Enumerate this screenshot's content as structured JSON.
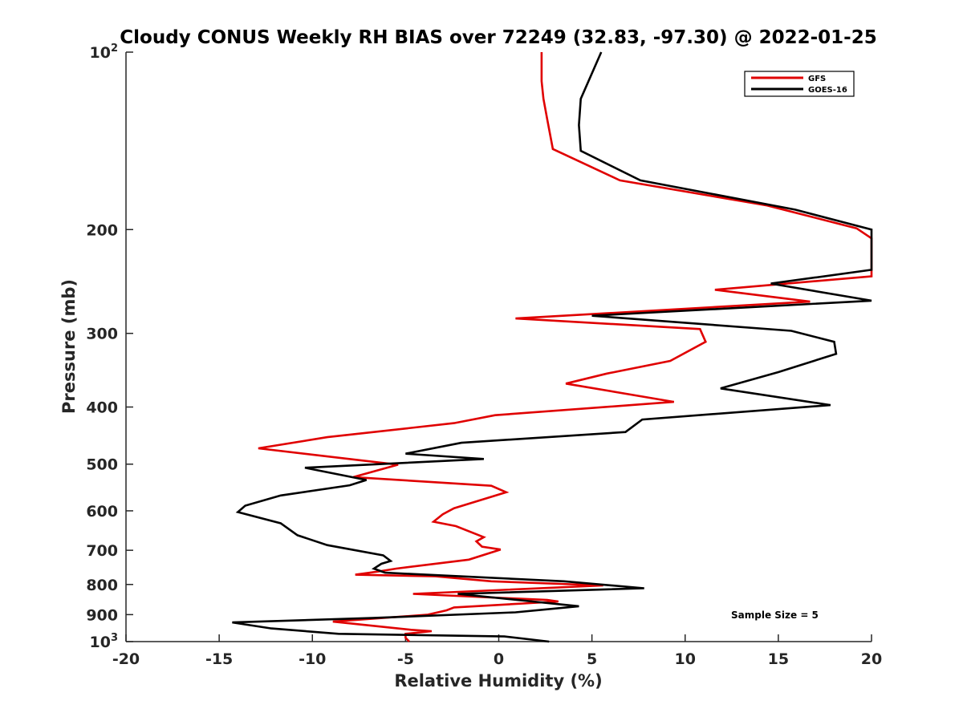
{
  "chart_data": {
    "type": "line",
    "title": "Cloudy CONUS Weekly RH BIAS over 72249 (32.83, -97.30) @ 2022-01-25",
    "xlabel": "Relative Humidity (%)",
    "ylabel": "Pressure (mb)",
    "xlim": [
      -20,
      20
    ],
    "ylim": [
      1000,
      100
    ],
    "y_scale": "log",
    "x_ticks": [
      "-20",
      "-15",
      "-10",
      "-5",
      "0",
      "5",
      "10",
      "15",
      "20"
    ],
    "x_tick_values": [
      -20,
      -15,
      -10,
      -5,
      0,
      5,
      10,
      15,
      20
    ],
    "y_tick_values": [
      200,
      300,
      400,
      500,
      600,
      700,
      800,
      900
    ],
    "y_tick_labels": [
      "200",
      "300",
      "400",
      "500",
      "600",
      "700",
      "800",
      "900"
    ],
    "y_limit_labels": [
      {
        "value": 100,
        "base": "10",
        "exp": "2"
      },
      {
        "value": 1000,
        "base": "10",
        "exp": "3"
      }
    ],
    "legend_position": "top-right",
    "grid": false,
    "annotation": "Sample Size = 5",
    "series": [
      {
        "name": "GFS",
        "color": "#e00000",
        "points": [
          [
            -4.8,
            1000
          ],
          [
            -5.0,
            985
          ],
          [
            -5.0,
            970
          ],
          [
            -3.6,
            960
          ],
          [
            -4.7,
            955
          ],
          [
            -8.9,
            925
          ],
          [
            -3.8,
            900
          ],
          [
            -2.8,
            885
          ],
          [
            -2.4,
            875
          ],
          [
            3.2,
            855
          ],
          [
            2.6,
            850
          ],
          [
            -4.6,
            830
          ],
          [
            5.6,
            803
          ],
          [
            -0.4,
            790
          ],
          [
            -3.4,
            775
          ],
          [
            -7.7,
            770
          ],
          [
            -6.4,
            760
          ],
          [
            -5.5,
            752
          ],
          [
            -1.6,
            726
          ],
          [
            0.1,
            698
          ],
          [
            -0.9,
            690
          ],
          [
            -1.2,
            676
          ],
          [
            -0.8,
            665
          ],
          [
            -2.3,
            637
          ],
          [
            -3.5,
            626
          ],
          [
            -3.0,
            608
          ],
          [
            -2.4,
            594
          ],
          [
            0.4,
            558
          ],
          [
            -0.4,
            544
          ],
          [
            -7.8,
            526
          ],
          [
            -5.4,
            501
          ],
          [
            -12.9,
            470
          ],
          [
            -9.2,
            450
          ],
          [
            -2.4,
            426
          ],
          [
            -0.2,
            413
          ],
          [
            9.4,
            392
          ],
          [
            3.6,
            365
          ],
          [
            5.8,
            351
          ],
          [
            9.2,
            334
          ],
          [
            11.1,
            310
          ],
          [
            10.8,
            295
          ],
          [
            0.9,
            283
          ],
          [
            16.7,
            265
          ],
          [
            11.6,
            253
          ],
          [
            20.0,
            240
          ],
          [
            20.0,
            207
          ],
          [
            19.2,
            199
          ],
          [
            14.4,
            182
          ],
          [
            6.5,
            165
          ],
          [
            2.9,
            146
          ],
          [
            2.6,
            130
          ],
          [
            2.4,
            120
          ],
          [
            2.3,
            112
          ],
          [
            2.3,
            100
          ]
        ]
      },
      {
        "name": "GOES-16",
        "color": "#000000",
        "points": [
          [
            2.7,
            1000
          ],
          [
            0.3,
            980
          ],
          [
            -8.6,
            970
          ],
          [
            -12.2,
            950
          ],
          [
            -14.3,
            928
          ],
          [
            -6.8,
            912
          ],
          [
            0.9,
            892
          ],
          [
            4.3,
            871
          ],
          [
            -2.2,
            830
          ],
          [
            7.8,
            812
          ],
          [
            3.5,
            790
          ],
          [
            -6.1,
            764
          ],
          [
            -6.7,
            752
          ],
          [
            -6.3,
            738
          ],
          [
            -5.8,
            730
          ],
          [
            -6.2,
            714
          ],
          [
            -9.2,
            686
          ],
          [
            -10.8,
            660
          ],
          [
            -11.7,
            630
          ],
          [
            -14.0,
            603
          ],
          [
            -13.6,
            588
          ],
          [
            -11.7,
            565
          ],
          [
            -8.0,
            543
          ],
          [
            -7.1,
            532
          ],
          [
            -10.4,
            507
          ],
          [
            -0.8,
            490
          ],
          [
            -5.0,
            480
          ],
          [
            -2.0,
            460
          ],
          [
            6.8,
            441
          ],
          [
            7.7,
            420
          ],
          [
            17.8,
            397
          ],
          [
            11.9,
            372
          ],
          [
            15.0,
            349
          ],
          [
            18.1,
            325
          ],
          [
            18.0,
            310
          ],
          [
            15.7,
            297
          ],
          [
            5.0,
            280
          ],
          [
            20.0,
            264
          ],
          [
            14.6,
            247
          ],
          [
            20.0,
            234
          ],
          [
            20.0,
            200
          ],
          [
            15.9,
            185
          ],
          [
            7.6,
            165
          ],
          [
            4.4,
            147
          ],
          [
            4.3,
            133
          ],
          [
            4.4,
            120
          ],
          [
            5.5,
            100
          ]
        ]
      }
    ]
  }
}
